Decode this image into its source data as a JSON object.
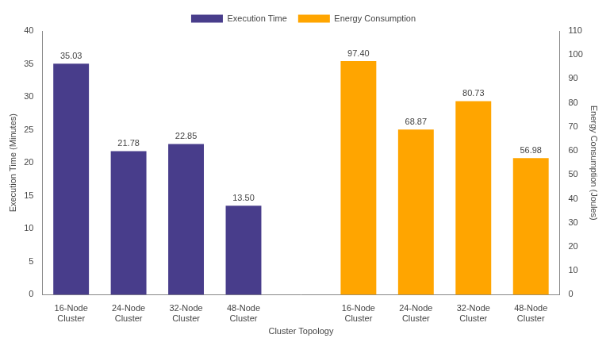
{
  "chart_data": {
    "type": "bar",
    "categories": [
      "16-Node Cluster",
      "24-Node Cluster",
      "32-Node Cluster",
      "48-Node Cluster",
      null,
      "16-Node Cluster",
      "24-Node Cluster",
      "32-Node Cluster",
      "48-Node Cluster"
    ],
    "x_label": "Cluster Topology",
    "y_label": "Execution Time (Minutes)",
    "y2_label": "Energy Consumption (Joules)",
    "series": [
      {
        "name": "Execution Time",
        "color": "#483d8b",
        "values": [
          35.03,
          21.78,
          22.85,
          13.5,
          null,
          null,
          null,
          null,
          null
        ],
        "value_labels": [
          "35.03",
          "21.78",
          "22.85",
          "13.50",
          null,
          null,
          null,
          null,
          null
        ]
      },
      {
        "name": "Energy Consumption",
        "color": "#ffa500",
        "axis": "y2",
        "values": [
          null,
          null,
          null,
          null,
          null,
          97.4,
          68.87,
          80.73,
          56.98
        ],
        "value_labels": [
          null,
          null,
          null,
          null,
          null,
          "97.40",
          "68.87",
          "80.73",
          "56.98"
        ]
      }
    ],
    "ylim": [
      0,
      40
    ],
    "yticks": [
      0,
      5,
      10,
      15,
      20,
      25,
      30,
      35,
      40
    ],
    "y2lim": [
      0,
      110
    ],
    "y2ticks": [
      0,
      10,
      20,
      30,
      40,
      50,
      60,
      70,
      80,
      90,
      100,
      110
    ],
    "grid": false,
    "legend": "top",
    "data_labels": true
  }
}
